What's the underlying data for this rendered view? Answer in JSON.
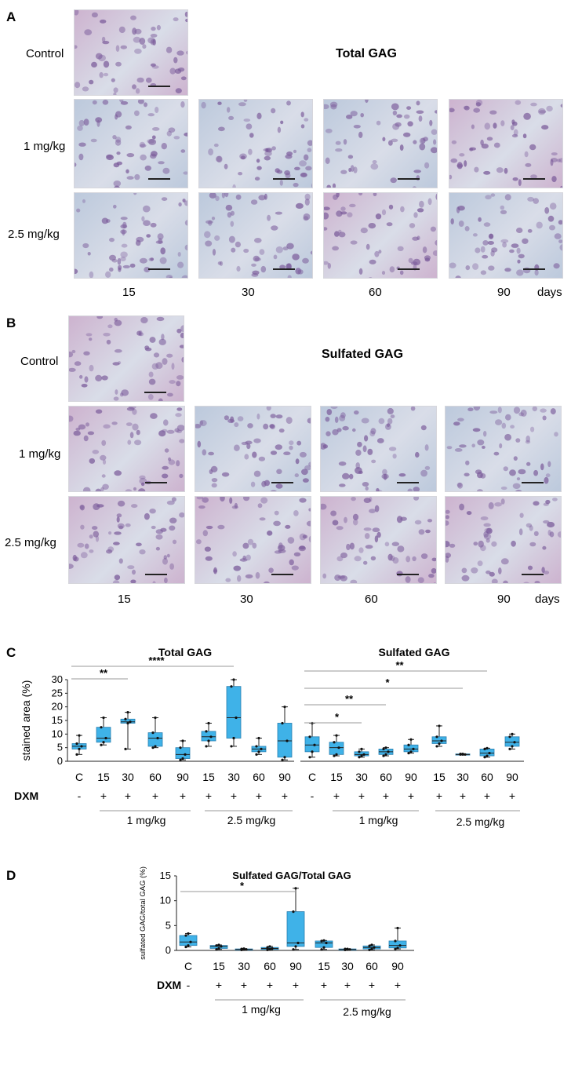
{
  "panel_a": {
    "letter": "A",
    "title": "Total GAG",
    "rows": [
      "Control",
      "1 mg/kg",
      "2.5 mg/kg"
    ],
    "days": [
      "15",
      "30",
      "60",
      "90"
    ],
    "days_unit": "days"
  },
  "panel_b": {
    "letter": "B",
    "title": "Sulfated GAG",
    "rows": [
      "Control",
      "1 mg/kg",
      "2.5 mg/kg"
    ],
    "days": [
      "15",
      "30",
      "60",
      "90"
    ],
    "days_unit": "days"
  },
  "panel_c": {
    "letter": "C"
  },
  "panel_d": {
    "letter": "D"
  },
  "treatment_row": {
    "dxm_label": "DXM",
    "signs": [
      "-",
      "+",
      "+",
      "+",
      "+",
      "+",
      "+",
      "+",
      "+"
    ],
    "dose_1": "1 mg/kg",
    "dose_2": "2.5 mg/kg"
  },
  "colors": {
    "box_fill": "#3fb2e8",
    "box_stroke": "#222222",
    "point": "#111111",
    "sig_line": "#9a9a9a",
    "tissue_blue": "#bcc9dc",
    "tissue_pink": "#cdb3cf",
    "nucleus": "#7a5a9a"
  },
  "chart_data": [
    {
      "type": "box",
      "title": "Total GAG",
      "ylabel": "stained area (%)",
      "ylim": [
        0,
        30
      ],
      "yticks": [
        0,
        5,
        10,
        15,
        20,
        25,
        30
      ],
      "categories": [
        "C",
        "15",
        "30",
        "60",
        "90",
        "15",
        "30",
        "60",
        "90"
      ],
      "boxes": [
        {
          "min": 2.5,
          "q1": 4.5,
          "median": 5.5,
          "q3": 6.5,
          "max": 9.5
        },
        {
          "min": 6.0,
          "q1": 7.0,
          "median": 8.5,
          "q3": 12.5,
          "max": 16.0
        },
        {
          "min": 4.5,
          "q1": 14.0,
          "median": 14.5,
          "q3": 15.5,
          "max": 18.0
        },
        {
          "min": 5.0,
          "q1": 5.5,
          "median": 8.5,
          "q3": 10.5,
          "max": 16.0
        },
        {
          "min": 0.5,
          "q1": 1.0,
          "median": 2.5,
          "q3": 5.0,
          "max": 7.5
        },
        {
          "min": 5.5,
          "q1": 7.5,
          "median": 9.0,
          "q3": 11.0,
          "max": 14.0
        },
        {
          "min": 5.5,
          "q1": 8.5,
          "median": 16.0,
          "q3": 27.5,
          "max": 30.0
        },
        {
          "min": 2.5,
          "q1": 3.5,
          "median": 4.5,
          "q3": 5.5,
          "max": 8.5
        },
        {
          "min": 0.5,
          "q1": 1.5,
          "median": 7.5,
          "q3": 14.0,
          "max": 20.0
        }
      ],
      "significance": [
        {
          "from": 0,
          "to": 2,
          "label": "**"
        },
        {
          "from": 0,
          "to": 6,
          "label": "****"
        }
      ]
    },
    {
      "type": "box",
      "title": "Sulfated GAG",
      "categories": [
        "C",
        "15",
        "30",
        "60",
        "90",
        "15",
        "30",
        "60",
        "90"
      ],
      "boxes": [
        {
          "min": 1.5,
          "q1": 3.5,
          "median": 6.0,
          "q3": 9.0,
          "max": 14.0
        },
        {
          "min": 2.0,
          "q1": 2.5,
          "median": 5.0,
          "q3": 7.0,
          "max": 9.5
        },
        {
          "min": 1.5,
          "q1": 2.0,
          "median": 2.5,
          "q3": 3.5,
          "max": 4.5
        },
        {
          "min": 2.0,
          "q1": 2.5,
          "median": 3.5,
          "q3": 4.5,
          "max": 5.0
        },
        {
          "min": 3.0,
          "q1": 3.5,
          "median": 4.5,
          "q3": 6.0,
          "max": 8.0
        },
        {
          "min": 5.5,
          "q1": 6.5,
          "median": 7.5,
          "q3": 9.0,
          "max": 13.0
        },
        {
          "min": 2.5,
          "q1": 2.5,
          "median": 2.5,
          "q3": 2.7,
          "max": 2.7
        },
        {
          "min": 1.5,
          "q1": 2.0,
          "median": 3.0,
          "q3": 4.5,
          "max": 4.8
        },
        {
          "min": 4.5,
          "q1": 5.5,
          "median": 7.0,
          "q3": 9.0,
          "max": 10.0
        }
      ],
      "significance": [
        {
          "from": 0,
          "to": 2,
          "label": "*"
        },
        {
          "from": 0,
          "to": 3,
          "label": "**"
        },
        {
          "from": 0,
          "to": 6,
          "label": "*"
        },
        {
          "from": 0,
          "to": 7,
          "label": "**"
        }
      ]
    },
    {
      "type": "box",
      "title": "Sulfated GAG/Total GAG",
      "ylabel": "sulfated GAG/total GAG (%)",
      "ylim": [
        0,
        15
      ],
      "yticks": [
        0,
        5,
        10,
        15
      ],
      "categories": [
        "C",
        "15",
        "30",
        "60",
        "90",
        "15",
        "30",
        "60",
        "90"
      ],
      "boxes": [
        {
          "min": 0.7,
          "q1": 1.0,
          "median": 1.7,
          "q3": 3.0,
          "max": 3.4
        },
        {
          "min": 0.2,
          "q1": 0.4,
          "median": 0.8,
          "q3": 1.0,
          "max": 1.1
        },
        {
          "min": 0.1,
          "q1": 0.15,
          "median": 0.2,
          "q3": 0.3,
          "max": 0.35
        },
        {
          "min": 0.1,
          "q1": 0.2,
          "median": 0.4,
          "q3": 0.6,
          "max": 0.8
        },
        {
          "min": 0.2,
          "q1": 0.8,
          "median": 1.5,
          "q3": 7.8,
          "max": 12.5
        },
        {
          "min": 0.2,
          "q1": 0.6,
          "median": 1.5,
          "q3": 1.9,
          "max": 2.0
        },
        {
          "min": 0.1,
          "q1": 0.15,
          "median": 0.2,
          "q3": 0.3,
          "max": 0.3
        },
        {
          "min": 0.1,
          "q1": 0.3,
          "median": 0.6,
          "q3": 0.9,
          "max": 1.1
        },
        {
          "min": 0.3,
          "q1": 0.5,
          "median": 1.0,
          "q3": 1.9,
          "max": 4.5
        }
      ],
      "significance": [
        {
          "from": 0,
          "to": 4,
          "label": "*"
        }
      ]
    }
  ]
}
